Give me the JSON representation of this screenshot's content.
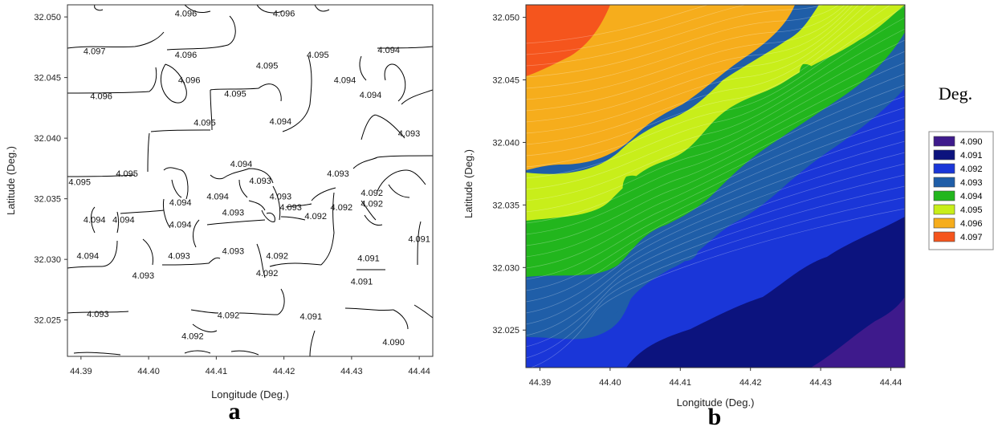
{
  "chart_data": [
    {
      "type": "contour",
      "panel_label": "a",
      "xlabel": "Longitude (Deg.)",
      "ylabel": "Latitude  (Deg.)",
      "xlim": [
        44.388,
        44.442
      ],
      "ylim": [
        32.022,
        32.051
      ],
      "x_ticks": [
        "44.39",
        "44.40",
        "44.41",
        "44.42",
        "44.43",
        "44.44"
      ],
      "y_ticks": [
        "32.025",
        "32.030",
        "32.035",
        "32.040",
        "32.045",
        "32.050"
      ],
      "contour_labels": [
        {
          "text": "4.096",
          "x": 44.4055,
          "y": 32.0503
        },
        {
          "text": "4.096",
          "x": 44.42,
          "y": 32.0503
        },
        {
          "text": "4.097",
          "x": 44.392,
          "y": 32.0472
        },
        {
          "text": "4.096",
          "x": 44.4055,
          "y": 32.0469
        },
        {
          "text": "4.095",
          "x": 44.4175,
          "y": 32.046
        },
        {
          "text": "4.095",
          "x": 44.425,
          "y": 32.0469
        },
        {
          "text": "4.094",
          "x": 44.4355,
          "y": 32.0473
        },
        {
          "text": "4.096",
          "x": 44.406,
          "y": 32.0448
        },
        {
          "text": "4.094",
          "x": 44.429,
          "y": 32.0448
        },
        {
          "text": "4.096",
          "x": 44.393,
          "y": 32.0435
        },
        {
          "text": "4.095",
          "x": 44.4128,
          "y": 32.0437
        },
        {
          "text": "4.094",
          "x": 44.4328,
          "y": 32.0436
        },
        {
          "text": "4.095",
          "x": 44.4083,
          "y": 32.0413
        },
        {
          "text": "4.094",
          "x": 44.4195,
          "y": 32.0414
        },
        {
          "text": "4.093",
          "x": 44.4385,
          "y": 32.0404
        },
        {
          "text": "4.094",
          "x": 44.4137,
          "y": 32.0379
        },
        {
          "text": "4.095",
          "x": 44.3968,
          "y": 32.0371
        },
        {
          "text": "4.093",
          "x": 44.428,
          "y": 32.0371
        },
        {
          "text": "4.095",
          "x": 44.3898,
          "y": 32.0364
        },
        {
          "text": "4.093",
          "x": 44.4165,
          "y": 32.0365
        },
        {
          "text": "4.093",
          "x": 44.4195,
          "y": 32.0352
        },
        {
          "text": "4.094",
          "x": 44.4102,
          "y": 32.0352
        },
        {
          "text": "4.092",
          "x": 44.433,
          "y": 32.0355
        },
        {
          "text": "4.094",
          "x": 44.4047,
          "y": 32.0347
        },
        {
          "text": "4.092",
          "x": 44.433,
          "y": 32.0346
        },
        {
          "text": "4.093",
          "x": 44.421,
          "y": 32.0343
        },
        {
          "text": "4.092",
          "x": 44.4285,
          "y": 32.0343
        },
        {
          "text": "4.093",
          "x": 44.4125,
          "y": 32.0339
        },
        {
          "text": "4.094",
          "x": 44.392,
          "y": 32.0333
        },
        {
          "text": "4.094",
          "x": 44.3963,
          "y": 32.0333
        },
        {
          "text": "4.092",
          "x": 44.4247,
          "y": 32.0336
        },
        {
          "text": "4.094",
          "x": 44.4047,
          "y": 32.0329
        },
        {
          "text": "4.091",
          "x": 44.44,
          "y": 32.0317
        },
        {
          "text": "4.094",
          "x": 44.391,
          "y": 32.0303
        },
        {
          "text": "4.093",
          "x": 44.4045,
          "y": 32.0303
        },
        {
          "text": "4.093",
          "x": 44.4125,
          "y": 32.0307
        },
        {
          "text": "4.092",
          "x": 44.419,
          "y": 32.0303
        },
        {
          "text": "4.091",
          "x": 44.4325,
          "y": 32.0301
        },
        {
          "text": "4.093",
          "x": 44.3992,
          "y": 32.0287
        },
        {
          "text": "4.092",
          "x": 44.4175,
          "y": 32.0289
        },
        {
          "text": "4.091",
          "x": 44.4315,
          "y": 32.0282
        },
        {
          "text": "4.093",
          "x": 44.3925,
          "y": 32.0255
        },
        {
          "text": "4.092",
          "x": 44.4118,
          "y": 32.0254
        },
        {
          "text": "4.091",
          "x": 44.424,
          "y": 32.0253
        },
        {
          "text": "4.092",
          "x": 44.4065,
          "y": 32.0237
        },
        {
          "text": "4.090",
          "x": 44.4362,
          "y": 32.0232
        }
      ]
    },
    {
      "type": "heatmap",
      "panel_label": "b",
      "xlabel": "Longitude (Deg.)",
      "ylabel": "Latitude  (Deg.)",
      "xlim": [
        44.388,
        44.442
      ],
      "ylim": [
        32.022,
        32.051
      ],
      "x_ticks": [
        "44.39",
        "44.40",
        "44.41",
        "44.42",
        "44.43",
        "44.44"
      ],
      "y_ticks": [
        "32.025",
        "32.030",
        "32.035",
        "32.040",
        "32.045",
        "32.050"
      ],
      "legend_title": "Deg.",
      "legend_position": "right",
      "legend": [
        {
          "label": "4.090",
          "color": "#3e1a8c"
        },
        {
          "label": "4.091",
          "color": "#0c137e"
        },
        {
          "label": "4.092",
          "color": "#1a36d8"
        },
        {
          "label": "4.093",
          "color": "#1f5ea8"
        },
        {
          "label": "4.094",
          "color": "#22b61d"
        },
        {
          "label": "4.095",
          "color": "#c8ee1a"
        },
        {
          "label": "4.096",
          "color": "#f6ad1c"
        },
        {
          "label": "4.097",
          "color": "#f5551d"
        }
      ]
    }
  ]
}
